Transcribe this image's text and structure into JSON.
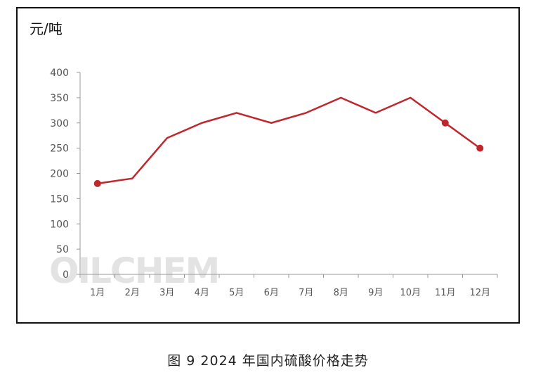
{
  "chart_data": {
    "type": "line",
    "unit_label": "元/吨",
    "categories": [
      "1月",
      "2月",
      "3月",
      "4月",
      "5月",
      "6月",
      "7月",
      "8月",
      "9月",
      "10月",
      "11月",
      "12月"
    ],
    "series": [
      {
        "values": [
          180,
          190,
          270,
          300,
          320,
          300,
          320,
          350,
          320,
          350,
          300,
          250
        ],
        "color": "#c0272d",
        "markers_at": [
          "1月",
          "11月",
          "12月"
        ]
      }
    ],
    "yticks": [
      0,
      50,
      100,
      150,
      200,
      250,
      300,
      350,
      400
    ],
    "ylim": [
      0,
      400
    ],
    "grid": false,
    "legend": "none",
    "watermark": "OILCHEM"
  },
  "caption": "图 9  2024 年国内硫酸价格走势"
}
